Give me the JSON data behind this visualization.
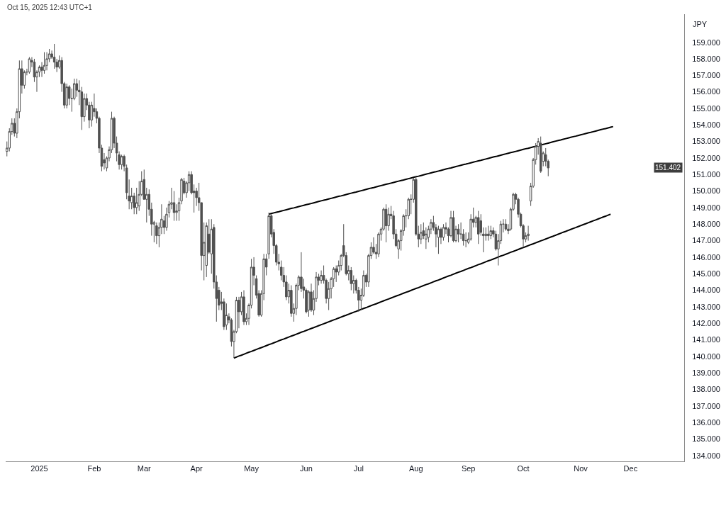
{
  "chart_data": {
    "type": "candlestick",
    "ylabel": "JPY",
    "annotations": [
      "Oct 15, 2025 12:43 UTC+1",
      "151.402"
    ],
    "categories": [
      null,
      null,
      null,
      null,
      null,
      null,
      null,
      null,
      null,
      null,
      null,
      null,
      null,
      "2025",
      null,
      null,
      null,
      null,
      null,
      null,
      null,
      null,
      null,
      null,
      null,
      null,
      null,
      null,
      null,
      null,
      null,
      null,
      null,
      null,
      null,
      "Feb",
      null,
      null,
      null,
      null,
      null,
      null,
      null,
      null,
      null,
      null,
      null,
      null,
      null,
      null,
      null,
      null,
      null,
      null,
      null,
      "Mar",
      null,
      null,
      null,
      null,
      null,
      null,
      null,
      null,
      null,
      null,
      null,
      null,
      null,
      null,
      null,
      null,
      null,
      null,
      null,
      null,
      "Apr",
      null,
      null,
      null,
      null,
      null,
      null,
      null,
      null,
      null,
      null,
      null,
      null,
      null,
      null,
      null,
      null,
      null,
      null,
      null,
      null,
      null,
      "May",
      null,
      null,
      null,
      null,
      null,
      null,
      null,
      null,
      null,
      null,
      null,
      null,
      null,
      null,
      null,
      null,
      null,
      null,
      null,
      null,
      null,
      "Jun",
      null,
      null,
      null,
      null,
      null,
      null,
      null,
      null,
      null,
      null,
      null,
      null,
      null,
      null,
      null,
      null,
      null,
      null,
      null,
      null,
      "Jul",
      null,
      null,
      null,
      null,
      null,
      null,
      null,
      null,
      null,
      null,
      null,
      null,
      null,
      null,
      null,
      null,
      null,
      null,
      null,
      null,
      null,
      null,
      "Aug",
      null,
      null,
      null,
      null,
      null,
      null,
      null,
      null,
      null,
      null,
      null,
      null,
      null,
      null,
      null,
      null,
      null,
      null,
      null,
      null,
      "Sep",
      null,
      null,
      null,
      null,
      null,
      null,
      null,
      null,
      null,
      null,
      null,
      null,
      null,
      null,
      null,
      null,
      null,
      null,
      null,
      null,
      null,
      "Oct",
      null,
      null,
      null,
      null,
      null,
      null,
      null,
      null,
      null,
      null,
      null,
      null,
      null,
      null,
      null,
      null,
      null,
      null,
      null,
      null,
      null,
      null,
      "Nov",
      null,
      null,
      null,
      null,
      null,
      null,
      null,
      null,
      null,
      null,
      null,
      null,
      null,
      null,
      null,
      null,
      null,
      null,
      null,
      "Dec",
      null,
      null,
      null,
      null,
      null,
      null,
      null,
      null,
      null,
      null,
      null,
      null,
      null,
      null,
      null,
      null,
      null,
      null,
      null,
      null,
      null
    ],
    "ohlc": [
      [
        152.4,
        153.0,
        152.1,
        152.6
      ],
      [
        152.6,
        153.8,
        152.4,
        153.6
      ],
      [
        153.6,
        154.4,
        153.4,
        154.1
      ],
      [
        154.1,
        154.4,
        153.3,
        153.5
      ],
      [
        153.5,
        155.0,
        153.2,
        154.8
      ],
      [
        154.8,
        157.9,
        154.4,
        157.4
      ],
      [
        157.4,
        157.9,
        155.9,
        156.4
      ],
      [
        156.4,
        157.3,
        156.2,
        157.2
      ],
      [
        157.2,
        157.4,
        157.0,
        157.2
      ],
      [
        157.2,
        158.1,
        157.1,
        158.0
      ],
      [
        157.9,
        158.1,
        157.5,
        157.8
      ],
      [
        157.8,
        158.0,
        156.6,
        156.9
      ],
      [
        156.9,
        157.3,
        156.0,
        157.2
      ],
      [
        157.2,
        157.6,
        156.9,
        157.5
      ],
      [
        157.5,
        157.8,
        156.9,
        157.3
      ],
      [
        157.3,
        158.4,
        157.1,
        157.6
      ],
      [
        157.6,
        158.4,
        157.3,
        158.0
      ],
      [
        158.0,
        158.6,
        157.8,
        158.3
      ],
      [
        158.3,
        158.5,
        158.0,
        158.1
      ],
      [
        158.1,
        158.9,
        157.4,
        157.8
      ],
      [
        157.8,
        158.0,
        157.2,
        157.5
      ],
      [
        157.5,
        158.2,
        157.4,
        157.9
      ],
      [
        157.9,
        158.1,
        156.0,
        156.5
      ],
      [
        156.5,
        156.6,
        155.0,
        155.2
      ],
      [
        155.2,
        156.5,
        155.0,
        156.3
      ],
      [
        156.3,
        156.4,
        155.2,
        155.6
      ],
      [
        155.6,
        156.2,
        154.8,
        155.6
      ],
      [
        155.6,
        156.8,
        155.5,
        156.5
      ],
      [
        156.5,
        156.8,
        155.7,
        156.1
      ],
      [
        156.1,
        156.7,
        155.2,
        156.0
      ],
      [
        156.0,
        156.3,
        153.7,
        154.5
      ],
      [
        154.5,
        155.9,
        154.2,
        155.6
      ],
      [
        155.6,
        155.9,
        154.9,
        155.2
      ],
      [
        155.2,
        155.4,
        153.8,
        154.3
      ],
      [
        154.3,
        155.4,
        153.9,
        155.2
      ],
      [
        155.0,
        155.9,
        154.5,
        154.8
      ],
      [
        154.8,
        155.0,
        154.1,
        154.4
      ],
      [
        154.4,
        154.5,
        152.3,
        152.6
      ],
      [
        152.6,
        152.8,
        151.2,
        151.5
      ],
      [
        151.9,
        152.3,
        151.3,
        151.7
      ],
      [
        151.4,
        152.1,
        151.2,
        152.0
      ],
      [
        152.0,
        152.7,
        151.8,
        152.5
      ],
      [
        152.5,
        154.8,
        152.3,
        154.4
      ],
      [
        154.4,
        154.5,
        152.6,
        152.9
      ],
      [
        152.9,
        153.3,
        151.8,
        152.3
      ],
      [
        152.2,
        152.4,
        151.3,
        151.6
      ],
      [
        151.6,
        152.2,
        151.3,
        152.1
      ],
      [
        152.1,
        152.2,
        151.2,
        151.5
      ],
      [
        151.4,
        151.6,
        149.5,
        149.9
      ],
      [
        149.7,
        150.7,
        148.9,
        149.4
      ],
      [
        149.3,
        150.2,
        148.9,
        149.7
      ],
      [
        149.7,
        149.9,
        148.6,
        149.0
      ],
      [
        149.0,
        150.2,
        148.6,
        149.3
      ],
      [
        149.1,
        150.6,
        148.8,
        149.8
      ],
      [
        149.8,
        151.2,
        149.7,
        150.6
      ],
      [
        150.7,
        151.3,
        149.5,
        149.5
      ],
      [
        149.5,
        150.2,
        148.1,
        149.8
      ],
      [
        149.8,
        150.1,
        148.5,
        148.9
      ],
      [
        148.9,
        149.3,
        147.3,
        148.0
      ],
      [
        148.0,
        148.2,
        146.9,
        148.1
      ],
      [
        147.9,
        148.1,
        146.8,
        147.3
      ],
      [
        147.3,
        148.1,
        146.6,
        147.8
      ],
      [
        147.8,
        149.2,
        147.4,
        148.3
      ],
      [
        148.2,
        148.5,
        147.4,
        147.8
      ],
      [
        147.8,
        149.0,
        147.6,
        148.6
      ],
      [
        148.7,
        149.4,
        148.4,
        149.2
      ],
      [
        149.2,
        150.2,
        148.9,
        149.3
      ],
      [
        149.3,
        150.0,
        148.2,
        148.7
      ],
      [
        148.7,
        149.2,
        148.2,
        148.8
      ],
      [
        148.8,
        149.6,
        148.2,
        149.3
      ],
      [
        149.4,
        150.8,
        149.2,
        150.7
      ],
      [
        150.6,
        150.8,
        149.8,
        149.9
      ],
      [
        149.9,
        150.6,
        149.6,
        150.5
      ],
      [
        150.5,
        151.2,
        150.0,
        151.0
      ],
      [
        151.0,
        151.2,
        149.8,
        149.9
      ],
      [
        150.0,
        150.4,
        148.7,
        149.9
      ],
      [
        150.0,
        150.2,
        149.1,
        149.6
      ],
      [
        149.6,
        150.5,
        148.8,
        149.3
      ],
      [
        149.3,
        149.3,
        145.2,
        146.1
      ],
      [
        146.1,
        148.1,
        144.6,
        146.9
      ],
      [
        145.5,
        148.1,
        144.8,
        147.9
      ],
      [
        147.4,
        148.3,
        146.2,
        146.3
      ],
      [
        146.2,
        148.3,
        145.0,
        147.7
      ],
      [
        147.8,
        148.0,
        144.1,
        144.5
      ],
      [
        144.5,
        144.9,
        142.1,
        143.5
      ],
      [
        144.0,
        144.2,
        142.8,
        143.1
      ],
      [
        143.3,
        143.9,
        142.8,
        143.2
      ],
      [
        143.3,
        143.5,
        141.6,
        141.8
      ],
      [
        141.9,
        143.2,
        141.6,
        142.5
      ],
      [
        142.4,
        142.6,
        142.0,
        142.2
      ],
      [
        142.2,
        142.3,
        140.6,
        140.9
      ],
      [
        140.9,
        141.6,
        139.9,
        141.5
      ],
      [
        141.5,
        143.6,
        141.4,
        143.4
      ],
      [
        143.4,
        143.6,
        141.7,
        142.7
      ],
      [
        142.7,
        143.9,
        142.5,
        143.6
      ],
      [
        143.6,
        144.0,
        141.9,
        142.1
      ],
      [
        142.1,
        142.6,
        141.9,
        142.3
      ],
      [
        142.3,
        143.2,
        141.9,
        143.1
      ],
      [
        143.1,
        145.9,
        142.9,
        145.4
      ],
      [
        145.4,
        146.0,
        144.3,
        144.9
      ],
      [
        144.7,
        144.9,
        143.5,
        143.7
      ],
      [
        143.8,
        144.0,
        142.4,
        142.5
      ],
      [
        142.5,
        144.0,
        142.4,
        143.8
      ],
      [
        143.8,
        146.2,
        143.4,
        145.9
      ],
      [
        145.9,
        146.2,
        144.9,
        145.4
      ],
      [
        146.2,
        148.7,
        145.9,
        148.5
      ],
      [
        148.5,
        148.6,
        147.2,
        147.4
      ],
      [
        147.5,
        147.7,
        146.2,
        146.7
      ],
      [
        146.7,
        146.8,
        145.5,
        145.7
      ],
      [
        145.7,
        146.2,
        145.2,
        145.6
      ],
      [
        145.4,
        145.8,
        144.6,
        144.9
      ],
      [
        144.9,
        145.4,
        144.2,
        144.5
      ],
      [
        144.5,
        144.9,
        143.4,
        143.6
      ],
      [
        143.6,
        144.4,
        143.2,
        144.0
      ],
      [
        144.0,
        144.3,
        142.4,
        142.6
      ],
      [
        142.6,
        143.2,
        142.1,
        142.9
      ],
      [
        142.9,
        144.4,
        142.5,
        144.3
      ],
      [
        144.3,
        144.9,
        144.0,
        144.8
      ],
      [
        144.8,
        146.3,
        143.9,
        144.1
      ],
      [
        144.2,
        144.7,
        143.5,
        144.0
      ],
      [
        144.0,
        144.1,
        142.6,
        142.7
      ],
      [
        142.8,
        144.0,
        142.4,
        143.9
      ],
      [
        143.9,
        144.4,
        142.7,
        142.8
      ],
      [
        142.8,
        144.0,
        142.5,
        143.5
      ],
      [
        143.5,
        145.1,
        143.3,
        144.8
      ],
      [
        144.8,
        145.0,
        144.3,
        144.6
      ],
      [
        144.6,
        145.2,
        144.4,
        144.9
      ],
      [
        144.9,
        145.5,
        144.4,
        144.6
      ],
      [
        144.6,
        144.7,
        143.2,
        143.5
      ],
      [
        143.5,
        144.5,
        142.8,
        144.1
      ],
      [
        144.1,
        144.8,
        143.5,
        144.7
      ],
      [
        144.7,
        145.4,
        144.2,
        145.3
      ],
      [
        145.3,
        145.5,
        144.5,
        145.1
      ],
      [
        145.1,
        145.8,
        144.9,
        145.5
      ],
      [
        145.5,
        146.2,
        145.2,
        146.1
      ],
      [
        146.7,
        148.0,
        146.0,
        146.1
      ],
      [
        146.1,
        146.3,
        144.9,
        145.0
      ],
      [
        145.0,
        145.5,
        144.6,
        145.2
      ],
      [
        145.2,
        145.4,
        144.0,
        144.4
      ],
      [
        144.4,
        144.9,
        143.8,
        144.6
      ],
      [
        144.6,
        144.7,
        143.8,
        144.0
      ],
      [
        144.0,
        144.2,
        142.7,
        143.4
      ],
      [
        143.4,
        144.1,
        142.8,
        143.7
      ],
      [
        143.7,
        145.2,
        143.6,
        144.9
      ],
      [
        144.9,
        145.0,
        144.2,
        144.5
      ],
      [
        144.5,
        146.2,
        144.2,
        146.1
      ],
      [
        146.1,
        146.9,
        145.9,
        146.6
      ],
      [
        146.6,
        147.2,
        146.2,
        146.3
      ],
      [
        146.3,
        146.8,
        145.9,
        146.2
      ],
      [
        146.2,
        147.5,
        146.0,
        147.4
      ],
      [
        147.4,
        147.8,
        147.0,
        147.7
      ],
      [
        147.7,
        149.0,
        147.6,
        148.9
      ],
      [
        148.9,
        149.2,
        146.9,
        147.9
      ],
      [
        147.9,
        149.0,
        147.6,
        148.6
      ],
      [
        148.6,
        149.1,
        148.3,
        148.5
      ],
      [
        148.5,
        148.8,
        147.1,
        147.4
      ],
      [
        147.4,
        147.7,
        146.6,
        146.7
      ],
      [
        146.5,
        147.1,
        145.9,
        147.0
      ],
      [
        147.0,
        147.7,
        146.4,
        147.6
      ],
      [
        147.6,
        148.6,
        147.3,
        148.5
      ],
      [
        148.5,
        148.9,
        147.8,
        148.5
      ],
      [
        148.5,
        149.6,
        148.3,
        149.5
      ],
      [
        149.5,
        149.8,
        148.6,
        149.5
      ],
      [
        149.5,
        150.8,
        149.3,
        150.7
      ],
      [
        150.7,
        150.9,
        147.3,
        147.4
      ],
      [
        147.4,
        147.9,
        146.6,
        147.1
      ],
      [
        147.1,
        148.0,
        146.8,
        147.5
      ],
      [
        147.6,
        148.1,
        147.1,
        147.3
      ],
      [
        147.1,
        147.8,
        146.5,
        147.4
      ],
      [
        147.2,
        147.9,
        146.9,
        147.7
      ],
      [
        147.7,
        148.3,
        147.4,
        148.1
      ],
      [
        148.1,
        148.5,
        147.6,
        147.8
      ],
      [
        147.8,
        148.0,
        146.6,
        147.4
      ],
      [
        147.2,
        147.9,
        146.2,
        147.7
      ],
      [
        147.7,
        147.8,
        146.8,
        147.2
      ],
      [
        147.2,
        148.0,
        147.0,
        147.8
      ],
      [
        147.8,
        148.1,
        147.4,
        147.7
      ],
      [
        147.7,
        147.8,
        146.9,
        147.3
      ],
      [
        147.3,
        148.8,
        147.2,
        148.4
      ],
      [
        148.4,
        148.8,
        146.9,
        147.0
      ],
      [
        147.0,
        147.9,
        146.9,
        147.7
      ],
      [
        147.7,
        148.0,
        146.9,
        147.4
      ],
      [
        147.4,
        148.1,
        147.1,
        147.4
      ],
      [
        147.4,
        147.7,
        146.7,
        147.0
      ],
      [
        147.0,
        147.5,
        146.6,
        147.0
      ],
      [
        146.9,
        147.5,
        146.8,
        147.1
      ],
      [
        147.1,
        148.6,
        147.0,
        148.3
      ],
      [
        148.3,
        149.0,
        147.8,
        148.1
      ],
      [
        148.1,
        148.5,
        147.8,
        148.4
      ],
      [
        148.4,
        148.8,
        146.8,
        147.4
      ],
      [
        148.2,
        148.6,
        147.3,
        147.5
      ],
      [
        147.4,
        147.8,
        146.3,
        147.3
      ],
      [
        147.3,
        147.8,
        147.0,
        147.4
      ],
      [
        147.4,
        147.9,
        147.0,
        147.3
      ],
      [
        147.3,
        147.9,
        147.1,
        147.6
      ],
      [
        147.6,
        147.8,
        147.2,
        147.4
      ],
      [
        147.4,
        147.6,
        146.4,
        146.5
      ],
      [
        146.5,
        147.4,
        145.5,
        147.0
      ],
      [
        147.0,
        148.2,
        146.8,
        148.0
      ],
      [
        148.0,
        148.3,
        147.5,
        148.0
      ],
      [
        148.0,
        148.3,
        147.6,
        147.7
      ],
      [
        147.7,
        148.0,
        147.4,
        147.6
      ],
      [
        147.7,
        149.0,
        147.6,
        148.9
      ],
      [
        148.9,
        149.9,
        148.8,
        149.8
      ],
      [
        149.8,
        149.9,
        149.2,
        149.5
      ],
      [
        149.5,
        149.6,
        148.4,
        148.6
      ],
      [
        148.6,
        148.7,
        147.8,
        147.9
      ],
      [
        147.9,
        148.0,
        146.6,
        147.1
      ],
      [
        147.1,
        147.5,
        146.9,
        147.3
      ],
      [
        147.3,
        147.9,
        147.0,
        147.4
      ],
      [
        149.4,
        150.5,
        149.1,
        150.3
      ],
      [
        150.3,
        152.0,
        150.2,
        151.9
      ],
      [
        151.9,
        152.9,
        151.6,
        152.7
      ],
      [
        152.7,
        153.2,
        152.2,
        153.0
      ],
      [
        152.9,
        153.3,
        151.1,
        151.2
      ],
      [
        151.8,
        152.4,
        151.5,
        152.3
      ],
      [
        152.2,
        152.6,
        151.5,
        151.8
      ],
      [
        151.8,
        151.9,
        150.9,
        151.4
      ],
      null,
      null,
      null,
      null,
      null,
      null,
      null,
      null,
      null,
      null,
      null,
      null,
      null,
      null,
      null,
      null,
      null,
      null,
      null,
      null,
      null,
      null,
      null,
      null,
      null,
      null,
      null,
      null,
      null,
      null,
      null,
      null,
      null,
      null,
      null,
      null,
      null,
      null,
      null,
      null,
      null,
      null,
      null,
      null,
      null,
      null,
      null,
      null,
      null,
      null,
      null,
      null,
      null,
      null
    ],
    "series": [
      {
        "type": "line",
        "color": "#000000",
        "values": [
          null,
          null,
          null,
          null,
          null,
          null,
          null,
          null,
          null,
          null,
          null,
          null,
          null,
          null,
          null,
          null,
          null,
          null,
          null,
          null,
          null,
          null,
          null,
          null,
          null,
          null,
          null,
          null,
          null,
          null,
          null,
          null,
          null,
          null,
          null,
          null,
          null,
          null,
          null,
          null,
          null,
          null,
          null,
          null,
          null,
          null,
          null,
          null,
          null,
          null,
          null,
          null,
          null,
          null,
          null,
          null,
          null,
          null,
          null,
          null,
          null,
          null,
          null,
          null,
          null,
          null,
          null,
          null,
          null,
          null,
          null,
          null,
          null,
          null,
          null,
          null,
          null,
          null,
          null,
          null,
          null,
          null,
          null,
          null,
          null,
          null,
          null,
          null,
          null,
          null,
          null,
          null,
          null,
          null,
          null,
          null,
          null,
          null,
          null,
          null,
          null,
          null,
          null,
          null,
          null,
          148.6,
          148.64,
          148.68,
          148.72,
          148.75,
          148.79,
          148.83,
          148.87,
          148.91,
          148.95,
          148.98,
          149.02,
          149.06,
          149.1,
          149.14,
          149.18,
          149.21,
          149.25,
          149.29,
          149.33,
          149.37,
          149.41,
          149.45,
          149.48,
          149.52,
          149.56,
          149.6,
          149.64,
          149.68,
          149.71,
          149.75,
          149.79,
          149.83,
          149.87,
          149.91,
          149.94,
          149.98,
          150.02,
          150.06,
          150.1,
          150.14,
          150.18,
          150.21,
          150.25,
          150.29,
          150.33,
          150.37,
          150.41,
          150.44,
          150.48,
          150.52,
          150.56,
          150.6,
          150.64,
          150.67,
          150.71,
          150.75,
          150.79,
          150.83,
          150.87,
          150.9,
          150.94,
          150.98,
          151.02,
          151.06,
          151.1,
          151.14,
          151.17,
          151.21,
          151.25,
          151.29,
          151.33,
          151.37,
          151.4,
          151.44,
          151.48,
          151.52,
          151.56,
          151.6,
          151.63,
          151.67,
          151.71,
          151.75,
          151.79,
          151.83,
          151.86,
          151.9,
          151.94,
          151.98,
          152.02,
          152.06,
          152.09,
          152.13,
          152.17,
          152.21,
          152.25,
          152.29,
          152.33,
          152.36,
          152.4,
          152.44,
          152.48,
          152.52,
          152.56,
          152.59,
          152.63,
          152.67,
          152.71,
          152.75,
          152.79,
          152.82,
          152.86,
          152.9,
          152.94,
          152.98,
          153.02,
          153.06,
          153.09,
          153.13,
          153.17,
          153.21,
          153.25,
          153.29,
          153.32,
          153.36,
          153.4,
          153.44,
          153.48,
          153.52,
          153.55,
          153.59,
          153.63,
          153.67,
          153.71,
          153.75,
          153.78,
          153.82,
          153.86,
          153.9,
          null,
          null,
          null,
          null,
          null,
          null,
          null,
          null,
          null,
          null,
          null,
          null,
          null,
          null,
          null,
          null,
          null,
          null,
          null,
          null,
          null,
          null,
          null,
          null,
          null,
          null,
          null,
          null
        ]
      },
      {
        "type": "line",
        "color": "#000000",
        "values": [
          null,
          null,
          null,
          null,
          null,
          null,
          null,
          null,
          null,
          null,
          null,
          null,
          null,
          null,
          null,
          null,
          null,
          null,
          null,
          null,
          null,
          null,
          null,
          null,
          null,
          null,
          null,
          null,
          null,
          null,
          null,
          null,
          null,
          null,
          null,
          null,
          null,
          null,
          null,
          null,
          null,
          null,
          null,
          null,
          null,
          null,
          null,
          null,
          null,
          null,
          null,
          null,
          null,
          null,
          null,
          null,
          null,
          null,
          null,
          null,
          null,
          null,
          null,
          null,
          null,
          null,
          null,
          null,
          null,
          null,
          null,
          null,
          null,
          null,
          null,
          null,
          null,
          null,
          null,
          null,
          null,
          null,
          null,
          null,
          null,
          null,
          null,
          null,
          null,
          null,
          null,
          139.9,
          139.96,
          140.02,
          140.07,
          140.13,
          140.19,
          140.25,
          140.3,
          140.36,
          140.42,
          140.48,
          140.53,
          140.59,
          140.65,
          140.71,
          140.76,
          140.82,
          140.88,
          140.94,
          141.0,
          141.05,
          141.11,
          141.17,
          141.23,
          141.28,
          141.34,
          141.4,
          141.46,
          141.51,
          141.57,
          141.63,
          141.69,
          141.74,
          141.8,
          141.86,
          141.92,
          141.97,
          142.03,
          142.09,
          142.15,
          142.21,
          142.26,
          142.32,
          142.38,
          142.44,
          142.49,
          142.55,
          142.61,
          142.67,
          142.72,
          142.78,
          142.84,
          142.9,
          142.95,
          143.01,
          143.07,
          143.13,
          143.18,
          143.24,
          143.3,
          143.36,
          143.42,
          143.47,
          143.53,
          143.59,
          143.65,
          143.7,
          143.76,
          143.82,
          143.88,
          143.93,
          143.99,
          144.05,
          144.11,
          144.16,
          144.22,
          144.28,
          144.34,
          144.39,
          144.45,
          144.51,
          144.57,
          144.62,
          144.68,
          144.74,
          144.8,
          144.86,
          144.91,
          144.97,
          145.03,
          145.09,
          145.14,
          145.2,
          145.26,
          145.32,
          145.37,
          145.43,
          145.49,
          145.55,
          145.6,
          145.66,
          145.72,
          145.78,
          145.83,
          145.89,
          145.95,
          146.01,
          146.07,
          146.12,
          146.18,
          146.24,
          146.3,
          146.35,
          146.41,
          146.47,
          146.53,
          146.58,
          146.64,
          146.7,
          146.76,
          146.81,
          146.87,
          146.93,
          146.99,
          147.04,
          147.1,
          147.16,
          147.22,
          147.27,
          147.33,
          147.39,
          147.45,
          147.51,
          147.56,
          147.62,
          147.68,
          147.74,
          147.79,
          147.85,
          147.91,
          147.97,
          148.02,
          148.08,
          148.14,
          148.2,
          148.25,
          148.31,
          148.37,
          148.43,
          148.48,
          148.54,
          148.6,
          null,
          null,
          null,
          null,
          null,
          null,
          null,
          null,
          null,
          null,
          null,
          null,
          null,
          null,
          null,
          null,
          null,
          null,
          null,
          null,
          null,
          null,
          null,
          null,
          null,
          null,
          null,
          null,
          null
        ]
      }
    ],
    "ylim": [
      133.65,
      160.7
    ],
    "yticks": [
      {
        "value": 134,
        "label": "134.000"
      },
      {
        "value": 135,
        "label": "135.000"
      },
      {
        "value": 136,
        "label": "136.000"
      },
      {
        "value": 137,
        "label": "137.000"
      },
      {
        "value": 138,
        "label": "138.000"
      },
      {
        "value": 139,
        "label": "139.000"
      },
      {
        "value": 140,
        "label": "140.000"
      },
      {
        "value": 141,
        "label": "141.000"
      },
      {
        "value": 142,
        "label": "142.000"
      },
      {
        "value": 143,
        "label": "143.000"
      },
      {
        "value": 144,
        "label": "144.000"
      },
      {
        "value": 145,
        "label": "145.000"
      },
      {
        "value": 146,
        "label": "146.000"
      },
      {
        "value": 147,
        "label": "147.000"
      },
      {
        "value": 148,
        "label": "148.000"
      },
      {
        "value": 149,
        "label": "149.000"
      },
      {
        "value": 150,
        "label": "150.000"
      },
      {
        "value": 151,
        "label": "151.000"
      },
      {
        "value": 152,
        "label": "152.000"
      },
      {
        "value": 153,
        "label": "153.000"
      },
      {
        "value": 154,
        "label": "154.000"
      },
      {
        "value": 155,
        "label": "155.000"
      },
      {
        "value": 156,
        "label": "156.000"
      },
      {
        "value": 157,
        "label": "157.000"
      },
      {
        "value": 158,
        "label": "158.000"
      },
      {
        "value": 159,
        "label": "159.000"
      }
    ]
  }
}
